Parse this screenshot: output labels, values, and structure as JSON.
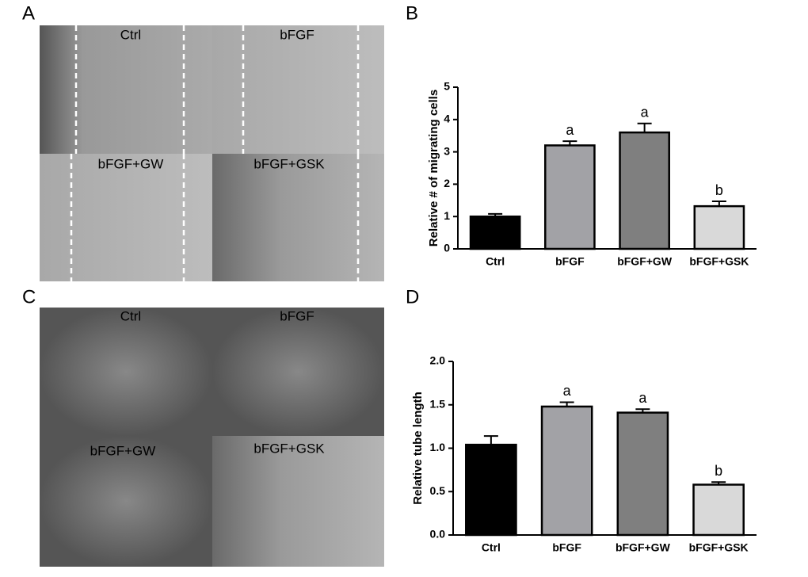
{
  "panels": {
    "a": "A",
    "b": "B",
    "c": "C",
    "d": "D"
  },
  "migration_images": [
    "Ctrl",
    "bFGF",
    "bFGF+GW",
    "bFGF+GSK"
  ],
  "tube_images": [
    "Ctrl",
    "bFGF",
    "bFGF+GW",
    "bFGF+GSK"
  ],
  "chart_data": [
    {
      "type": "bar",
      "y_label": "Relative # of migrating cells",
      "categories": [
        "Ctrl",
        "bFGF",
        "bFGF+GW",
        "bFGF+GSK"
      ],
      "values": [
        1.0,
        3.2,
        3.6,
        1.32
      ],
      "errors": [
        0.08,
        0.13,
        0.28,
        0.15
      ],
      "colors": [
        "#000000",
        "#a2a2a6",
        "#7f7f7f",
        "#d9d9d9"
      ],
      "significance": [
        null,
        "a",
        "a",
        "b"
      ],
      "ylim": [
        0,
        5
      ],
      "yticks": [
        0,
        1,
        2,
        3,
        4,
        5
      ]
    },
    {
      "type": "bar",
      "y_label": "Relative tube length",
      "categories": [
        "Ctrl",
        "bFGF",
        "bFGF+GW",
        "bFGF+GSK"
      ],
      "values": [
        1.04,
        1.48,
        1.41,
        0.58
      ],
      "errors": [
        0.1,
        0.05,
        0.04,
        0.03
      ],
      "colors": [
        "#000000",
        "#a2a2a6",
        "#7f7f7f",
        "#d9d9d9"
      ],
      "significance": [
        null,
        "a",
        "a",
        "b"
      ],
      "ylim": [
        0,
        2
      ],
      "yticks": [
        {
          "value": 0,
          "label": "0.0"
        },
        {
          "value": 0.5,
          "label": "0.5"
        },
        {
          "value": 1,
          "label": "1.0"
        },
        {
          "value": 1.5,
          "label": "1.5"
        },
        {
          "value": 2,
          "label": "2.0"
        }
      ]
    }
  ]
}
